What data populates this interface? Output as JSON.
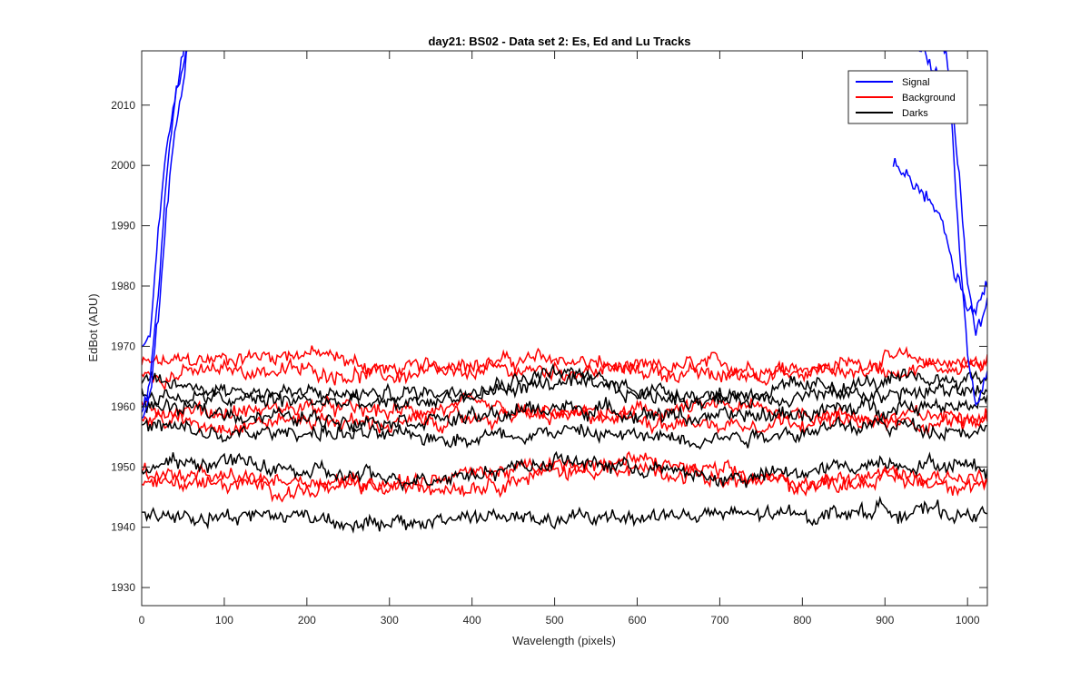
{
  "chart_data": {
    "type": "line",
    "title": "day21: BS02 - Data set 2: Es, Ed and Lu Tracks",
    "xlabel": "Wavelength (pixels)",
    "ylabel": "EdBot (ADU)",
    "xlim": [
      0,
      1024
    ],
    "ylim": [
      1927,
      2019
    ],
    "xticks": [
      0,
      100,
      200,
      300,
      400,
      500,
      600,
      700,
      800,
      900,
      1000
    ],
    "yticks": [
      1930,
      1940,
      1950,
      1960,
      1970,
      1980,
      1990,
      2000,
      2010
    ],
    "grid": false,
    "legend_position": "top-right",
    "legend": [
      {
        "name": "Signal",
        "color": "#0000ff"
      },
      {
        "name": "Background",
        "color": "#ff0000"
      },
      {
        "name": "Darks",
        "color": "#000000"
      }
    ],
    "noise_amplitude_adu": 1.6,
    "series": [
      {
        "group": "Signal",
        "color": "#0000ff",
        "x": [
          0,
          10,
          20,
          30,
          40,
          50,
          60,
          70
        ],
        "y": [
          1960,
          1965,
          1978,
          1998,
          2010,
          2016,
          2022,
          2030
        ]
      },
      {
        "group": "Signal",
        "color": "#0000ff",
        "x": [
          0,
          10,
          20,
          30,
          40,
          50,
          60
        ],
        "y": [
          1958,
          1963,
          1975,
          1992,
          2004,
          2014,
          2025
        ]
      },
      {
        "group": "Signal",
        "color": "#0000ff",
        "x": [
          0,
          10,
          20,
          30,
          40,
          50,
          60
        ],
        "y": [
          1971,
          1972,
          1990,
          2003,
          2012,
          2018,
          2026
        ]
      },
      {
        "group": "Signal",
        "color": "#0000ff",
        "x": [
          920,
          940,
          960,
          980,
          990,
          1000,
          1010,
          1024
        ],
        "y": [
          2030,
          2020,
          2015,
          2010,
          1985,
          1968,
          1960,
          1966
        ]
      },
      {
        "group": "Signal",
        "color": "#0000ff",
        "x": [
          910,
          930,
          950,
          970,
          985,
          1000,
          1010,
          1024
        ],
        "y": [
          2000,
          1997,
          1995,
          1990,
          1982,
          1977,
          1975,
          1980
        ]
      },
      {
        "group": "Signal",
        "color": "#0000ff",
        "x": [
          960,
          975,
          990,
          1000,
          1010,
          1024
        ],
        "y": [
          2025,
          2018,
          1998,
          1980,
          1972,
          1977
        ]
      },
      {
        "group": "Background",
        "color": "#ff0000",
        "x": [
          0,
          100,
          200,
          300,
          400,
          500,
          600,
          700,
          800,
          900,
          1024
        ],
        "y": [
          1967,
          1968,
          1969,
          1966,
          1967,
          1968,
          1966,
          1967,
          1966,
          1968,
          1967
        ]
      },
      {
        "group": "Background",
        "color": "#ff0000",
        "x": [
          0,
          100,
          200,
          300,
          400,
          500,
          600,
          700,
          800,
          900,
          1024
        ],
        "y": [
          1965,
          1966,
          1966,
          1965,
          1966,
          1966,
          1966,
          1965,
          1966,
          1966,
          1967
        ]
      },
      {
        "group": "Background",
        "color": "#ff0000",
        "x": [
          0,
          100,
          200,
          300,
          400,
          500,
          600,
          700,
          800,
          900,
          1024
        ],
        "y": [
          1960,
          1959,
          1960,
          1959,
          1960,
          1958,
          1959,
          1960,
          1959,
          1958,
          1959
        ]
      },
      {
        "group": "Background",
        "color": "#ff0000",
        "x": [
          0,
          100,
          200,
          300,
          400,
          500,
          600,
          700,
          800,
          900,
          1024
        ],
        "y": [
          1958,
          1957,
          1958,
          1957,
          1958,
          1959,
          1958,
          1957,
          1958,
          1957,
          1958
        ]
      },
      {
        "group": "Background",
        "color": "#ff0000",
        "x": [
          0,
          100,
          200,
          300,
          400,
          500,
          600,
          700,
          800,
          900,
          1024
        ],
        "y": [
          1949,
          1948,
          1948,
          1947,
          1949,
          1950,
          1950,
          1948,
          1947,
          1949,
          1948
        ]
      },
      {
        "group": "Background",
        "color": "#ff0000",
        "x": [
          0,
          100,
          200,
          300,
          400,
          500,
          600,
          700,
          800,
          900,
          1024
        ],
        "y": [
          1948,
          1947,
          1946,
          1947,
          1947,
          1949,
          1951,
          1949,
          1947,
          1948,
          1947
        ]
      },
      {
        "group": "Darks",
        "color": "#000000",
        "x": [
          0,
          100,
          200,
          300,
          400,
          500,
          600,
          700,
          800,
          900,
          1024
        ],
        "y": [
          1964,
          1963,
          1962,
          1962,
          1963,
          1966,
          1963,
          1962,
          1963,
          1964,
          1965
        ]
      },
      {
        "group": "Darks",
        "color": "#000000",
        "x": [
          0,
          100,
          200,
          300,
          400,
          500,
          600,
          700,
          800,
          900,
          1024
        ],
        "y": [
          1962,
          1961,
          1961,
          1960,
          1962,
          1964,
          1962,
          1961,
          1962,
          1962,
          1963
        ]
      },
      {
        "group": "Darks",
        "color": "#000000",
        "x": [
          0,
          100,
          200,
          300,
          400,
          500,
          600,
          700,
          800,
          900,
          1024
        ],
        "y": [
          1960,
          1959,
          1958,
          1958,
          1958,
          1960,
          1959,
          1958,
          1959,
          1960,
          1961
        ]
      },
      {
        "group": "Darks",
        "color": "#000000",
        "x": [
          0,
          100,
          200,
          300,
          400,
          500,
          600,
          700,
          800,
          900,
          1024
        ],
        "y": [
          1957,
          1955,
          1956,
          1955,
          1955,
          1956,
          1955,
          1955,
          1956,
          1957,
          1956
        ]
      },
      {
        "group": "Darks",
        "color": "#000000",
        "x": [
          0,
          100,
          200,
          300,
          400,
          500,
          600,
          700,
          800,
          900,
          1024
        ],
        "y": [
          1950,
          1951,
          1949,
          1948,
          1949,
          1951,
          1950,
          1948,
          1949,
          1951,
          1950
        ]
      },
      {
        "group": "Darks",
        "color": "#000000",
        "x": [
          0,
          100,
          200,
          300,
          400,
          500,
          600,
          700,
          800,
          900,
          1024
        ],
        "y": [
          1942,
          1942,
          1942,
          1940,
          1942,
          1941,
          1942,
          1942,
          1942,
          1943,
          1942
        ]
      }
    ]
  }
}
